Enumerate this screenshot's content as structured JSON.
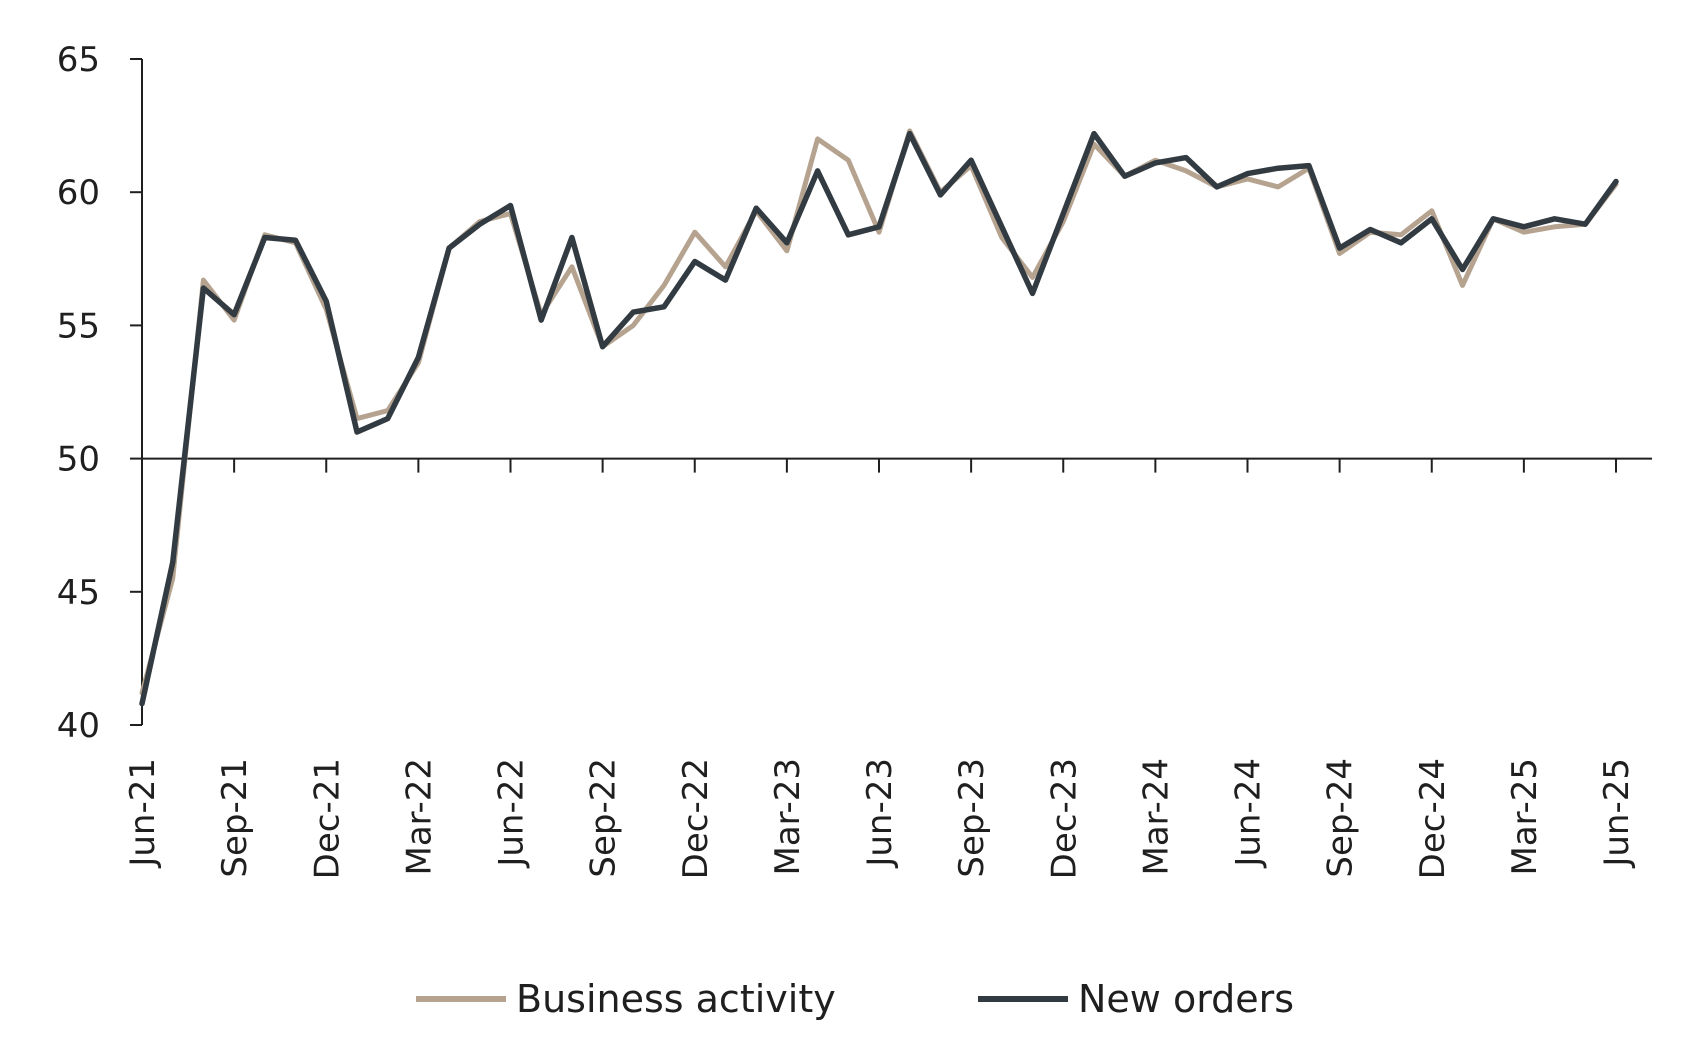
{
  "chart_data": {
    "type": "line",
    "title": "",
    "xlabel": "",
    "ylabel": "",
    "ylim": [
      40,
      65
    ],
    "yticks": [
      40,
      45,
      50,
      55,
      60,
      65
    ],
    "baseline": 50,
    "x": [
      "Jun-21",
      "Jul-21",
      "Aug-21",
      "Sep-21",
      "Oct-21",
      "Nov-21",
      "Dec-21",
      "Jan-22",
      "Feb-22",
      "Mar-22",
      "Apr-22",
      "May-22",
      "Jun-22",
      "Jul-22",
      "Aug-22",
      "Sep-22",
      "Oct-22",
      "Nov-22",
      "Dec-22",
      "Jan-23",
      "Feb-23",
      "Mar-23",
      "Apr-23",
      "May-23",
      "Jun-23",
      "Jul-23",
      "Aug-23",
      "Sep-23",
      "Oct-23",
      "Nov-23",
      "Dec-23",
      "Jan-24",
      "Feb-24",
      "Mar-24",
      "Apr-24",
      "May-24",
      "Jun-24",
      "Jul-24",
      "Aug-24",
      "Sep-24",
      "Oct-24",
      "Nov-24",
      "Dec-24",
      "Jan-25",
      "Feb-25",
      "Mar-25",
      "Apr-25",
      "May-25",
      "Jun-25"
    ],
    "xtick_labels": [
      "Jun-21",
      "Sep-21",
      "Dec-21",
      "Mar-22",
      "Jun-22",
      "Sep-22",
      "Dec-22",
      "Mar-23",
      "Jun-23",
      "Sep-23",
      "Dec-23",
      "Mar-24",
      "Jun-24",
      "Sep-24",
      "Dec-24",
      "Mar-25",
      "Jun-25"
    ],
    "legend_position": "bottom",
    "grid": false,
    "series": [
      {
        "name": "Business activity",
        "color": "#b5a390",
        "values": [
          41.2,
          45.5,
          56.7,
          55.2,
          58.4,
          58.1,
          55.6,
          51.5,
          51.8,
          53.6,
          57.9,
          58.9,
          59.2,
          55.4,
          57.2,
          54.2,
          55.0,
          56.5,
          58.5,
          57.2,
          59.3,
          57.8,
          62.0,
          61.2,
          58.5,
          62.3,
          60.0,
          61.0,
          58.3,
          56.8,
          58.9,
          61.8,
          60.6,
          61.2,
          60.8,
          60.2,
          60.5,
          60.2,
          60.9,
          57.7,
          58.5,
          58.4,
          59.3,
          56.5,
          59.0,
          58.5,
          58.7,
          58.8,
          60.3
        ]
      },
      {
        "name": "New orders",
        "color": "#323b42",
        "values": [
          40.8,
          46.1,
          56.4,
          55.4,
          58.3,
          58.2,
          55.9,
          51.0,
          51.5,
          53.8,
          57.9,
          58.8,
          59.5,
          55.2,
          58.3,
          54.2,
          55.5,
          55.7,
          57.4,
          56.7,
          59.4,
          58.1,
          60.8,
          58.4,
          58.7,
          62.2,
          59.9,
          61.2,
          58.7,
          56.2,
          59.2,
          62.2,
          60.6,
          61.1,
          61.3,
          60.2,
          60.7,
          60.9,
          61.0,
          57.9,
          58.6,
          58.1,
          59.0,
          57.1,
          59.0,
          58.7,
          59.0,
          58.8,
          60.4
        ]
      }
    ]
  }
}
